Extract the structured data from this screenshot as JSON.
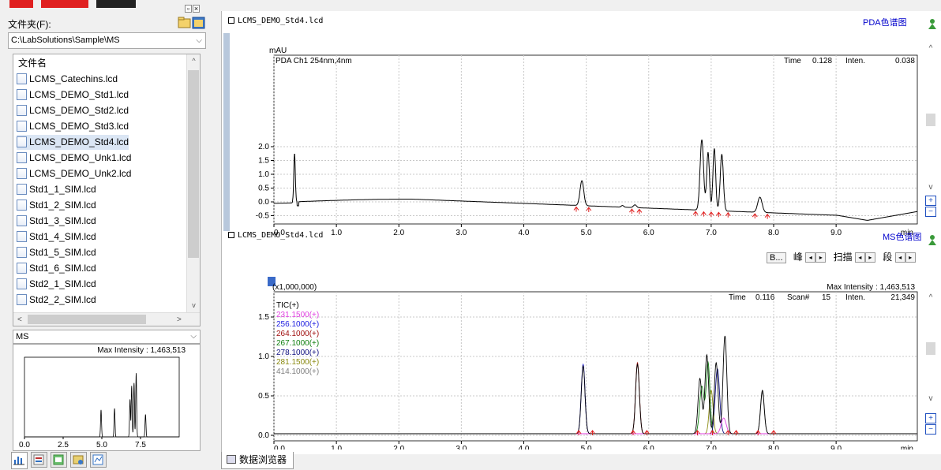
{
  "left_panel": {
    "folder_label": "文件夹(F):",
    "path": "C:\\LabSolutions\\Sample\\MS",
    "file_list_header": "文件名",
    "files": [
      {
        "name": "LCMS_Catechins.lcd",
        "selected": false
      },
      {
        "name": "LCMS_DEMO_Std1.lcd",
        "selected": false
      },
      {
        "name": "LCMS_DEMO_Std2.lcd",
        "selected": false
      },
      {
        "name": "LCMS_DEMO_Std3.lcd",
        "selected": false
      },
      {
        "name": "LCMS_DEMO_Std4.lcd",
        "selected": true
      },
      {
        "name": "LCMS_DEMO_Unk1.lcd",
        "selected": false
      },
      {
        "name": "LCMS_DEMO_Unk2.lcd",
        "selected": false
      },
      {
        "name": "Std1_1_SIM.lcd",
        "selected": false
      },
      {
        "name": "Std1_2_SIM.lcd",
        "selected": false
      },
      {
        "name": "Std1_3_SIM.lcd",
        "selected": false
      },
      {
        "name": "Std1_4_SIM.lcd",
        "selected": false
      },
      {
        "name": "Std1_5_SIM.lcd",
        "selected": false
      },
      {
        "name": "Std1_6_SIM.lcd",
        "selected": false
      },
      {
        "name": "Std2_1_SIM.lcd",
        "selected": false
      },
      {
        "name": "Std2_2_SIM.lcd",
        "selected": false
      }
    ],
    "ms_combo": "MS",
    "mini_chart": {
      "max_intensity_label": "Max Intensity : 1,463,513",
      "x_ticks": [
        "0.0",
        "2.5",
        "5.0",
        "7.5"
      ]
    },
    "bottom_tabs": [
      "chart-tab-icon",
      "data-tab-icon",
      "method-tab-icon",
      "batch-tab-icon",
      "report-tab-icon"
    ]
  },
  "pda_chart": {
    "window_title": "LCMS_DEMO_Std4.lcd",
    "view_tag": "PDA色谱图",
    "y_unit": "mAU",
    "channel": "PDA Ch1 254nm,4nm",
    "readout": {
      "time_label": "Time",
      "time": "0.128",
      "inten_label": "Inten.",
      "inten": "0.038"
    },
    "x_ticks": [
      "0.0",
      "1.0",
      "2.0",
      "3.0",
      "4.0",
      "5.0",
      "6.0",
      "7.0",
      "8.0",
      "9.0"
    ],
    "x_unit": "min",
    "y_ticks": [
      "2.0",
      "1.5",
      "1.0",
      "0.5",
      "0.0",
      "-0.5"
    ]
  },
  "ms_chart": {
    "window_title": "LCMS_DEMO_Std4.lcd",
    "view_tag": "MS色谱图",
    "toolbar": {
      "b_button": "B...",
      "peak": "峰",
      "scan": "扫描",
      "segment": "段"
    },
    "scale_label": "(x1,000,000)",
    "max_intensity_label": "Max Intensity : 1,463,513",
    "readout": {
      "time_label": "Time",
      "time": "0.116",
      "scan_label": "Scan#",
      "scan": "15",
      "inten_label": "Inten.",
      "inten": "21,349"
    },
    "legend": [
      {
        "label": "TIC(+)",
        "color": "#000000"
      },
      {
        "label": "231.1500(+)",
        "color": "#e040e0"
      },
      {
        "label": "256.1000(+)",
        "color": "#2020e0"
      },
      {
        "label": "264.1000(+)",
        "color": "#a01010"
      },
      {
        "label": "267.1000(+)",
        "color": "#108010"
      },
      {
        "label": "278.1000(+)",
        "color": "#101080"
      },
      {
        "label": "281.1500(+)",
        "color": "#8a8a10"
      },
      {
        "label": "414.1000(+)",
        "color": "#808080"
      }
    ],
    "x_ticks": [
      "0.0",
      "1.0",
      "2.0",
      "3.0",
      "4.0",
      "5.0",
      "6.0",
      "7.0",
      "8.0",
      "9.0"
    ],
    "x_unit": "min",
    "y_ticks": [
      "1.5",
      "1.0",
      "0.5",
      "0.0"
    ]
  },
  "browser_tab": "数据浏览器"
}
